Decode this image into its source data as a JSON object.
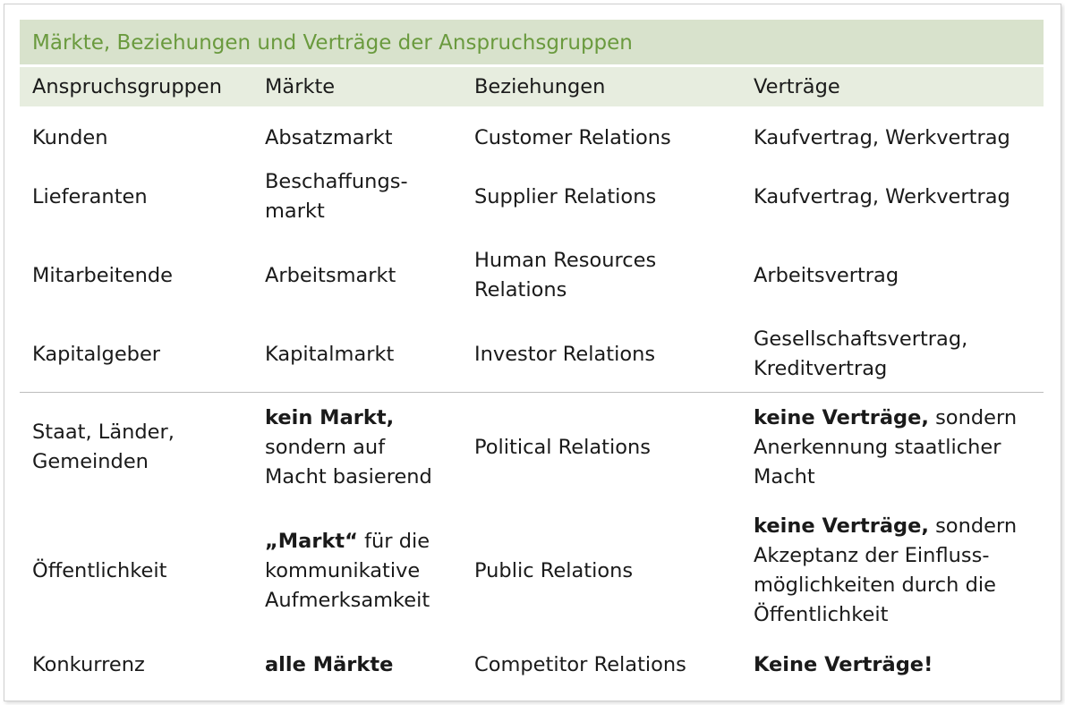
{
  "title": "Märkte, Beziehungen und Verträge der Anspruchsgruppen",
  "headers": [
    "Anspruchsgruppen",
    "Märkte",
    "Beziehungen",
    "Verträge"
  ],
  "rows": [
    {
      "group": "Kunden",
      "market": "Absatzmarkt",
      "relation": "Customer Relations",
      "contract": "Kaufvertrag, Werkvertrag"
    },
    {
      "group": "Lieferanten",
      "market_lines": [
        "Beschaffungs-",
        "markt"
      ],
      "relation": "Supplier Relations",
      "contract": "Kaufvertrag, Werkvertrag"
    },
    {
      "group": "Mitarbeitende",
      "market": "Arbeitsmarkt",
      "relation_lines": [
        "Human Resources",
        "Relations"
      ],
      "contract": "Arbeitsvertrag"
    },
    {
      "group": "Kapitalgeber",
      "market": "Kapitalmarkt",
      "relation": "Investor Relations",
      "contract_lines": [
        "Gesellschaftsvertrag,",
        "Kreditvertrag"
      ]
    },
    {
      "group_lines": [
        "Staat, Länder,",
        "Gemeinden"
      ],
      "market_bold": "kein Markt,",
      "market_lines": [
        "sondern auf",
        "Macht basierend"
      ],
      "relation": "Political Relations",
      "contract_bold": "keine Verträge,",
      "contract_rest": " sondern",
      "contract_lines": [
        "Anerkennung staatlicher",
        "Macht"
      ]
    },
    {
      "group": "Öffentlichkeit",
      "market_bold": "„Markt“",
      "market_rest": " für die",
      "market_lines": [
        "kommunikative",
        "Aufmerksamkeit"
      ],
      "relation": "Public Relations",
      "contract_bold": "keine Verträge,",
      "contract_rest": " sondern",
      "contract_lines": [
        "Akzeptanz der Einfluss-",
        "möglichkeiten durch die",
        "Öffentlichkeit"
      ]
    },
    {
      "group": "Konkurrenz",
      "market_bold": "alle Märkte",
      "relation": "Competitor Relations",
      "contract_bold": "Keine Verträge!"
    }
  ]
}
